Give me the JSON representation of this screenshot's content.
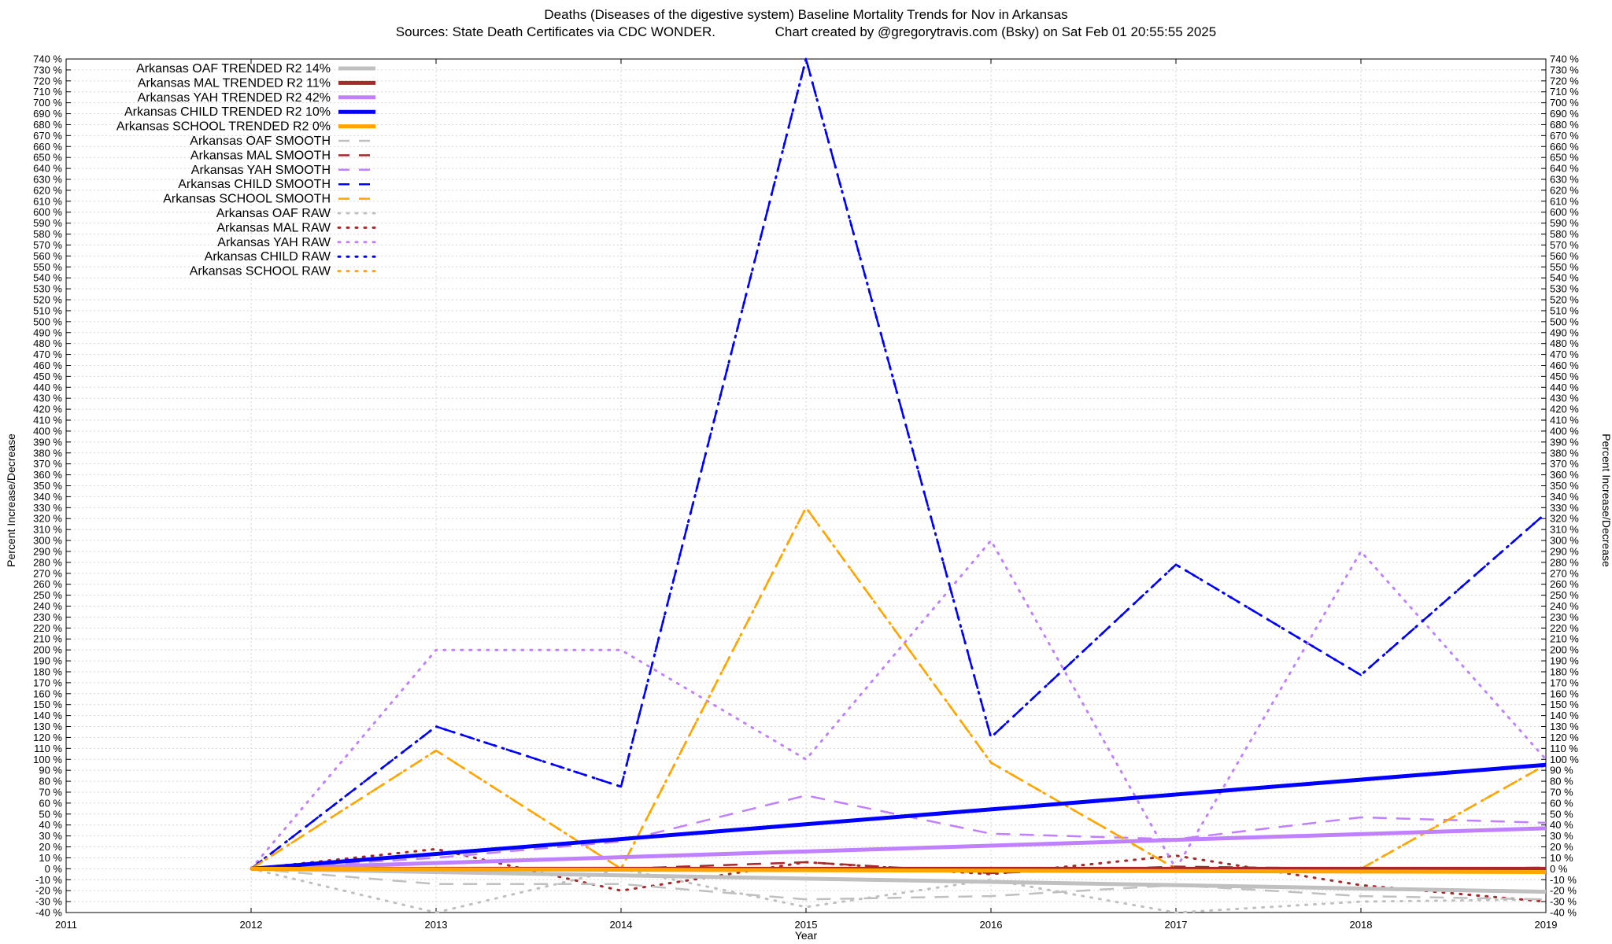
{
  "chart_data": {
    "type": "line",
    "title": "Deaths (Diseases of the digestive system)  Baseline Mortality Trends for Nov in Arkansas",
    "subtitle": "Sources: State Death Certificates via CDC WONDER.                Chart created by @gregorytravis.com (Bsky) on Sat Feb 01 20:55:55 2025",
    "xlabel": "Year",
    "ylabel": "Percent Increase/Decrease",
    "y2label": "Percent Increase/Decrease",
    "xlim": [
      2011,
      2019
    ],
    "ylim": [
      -40,
      740
    ],
    "x_ticks": [
      "2011",
      "2012",
      "2013",
      "2014",
      "2015",
      "2016",
      "2017",
      "2018",
      "2019"
    ],
    "y_tick_step": 10,
    "y_tick_suffix": " %",
    "grid": true,
    "legend_position": "top-left",
    "series": [
      {
        "name": "Arkansas OAF TRENDED R2  14%",
        "style": "trend",
        "color": "#c0c0c0",
        "x": [
          2012,
          2019
        ],
        "y": [
          0,
          -21
        ]
      },
      {
        "name": "Arkansas MAL TRENDED R2  11%",
        "style": "trend",
        "color": "#a52a2a",
        "x": [
          2012,
          2019
        ],
        "y": [
          0,
          0
        ]
      },
      {
        "name": "Arkansas YAH TRENDED R2  42%",
        "style": "trend",
        "color": "#c080ff",
        "x": [
          2012,
          2019
        ],
        "y": [
          0,
          37
        ]
      },
      {
        "name": "Arkansas CHILD TRENDED R2  10%",
        "style": "trend",
        "color": "#0000ff",
        "x": [
          2012,
          2019
        ],
        "y": [
          0,
          95
        ]
      },
      {
        "name": "Arkansas SCHOOL TRENDED R2   0%",
        "style": "trend",
        "color": "#ffa500",
        "x": [
          2012,
          2019
        ],
        "y": [
          0,
          -3
        ]
      },
      {
        "name": "Arkansas OAF SMOOTH",
        "style": "smooth",
        "color": "#c0c0c0",
        "x": [
          2012,
          2013,
          2014,
          2015,
          2016,
          2017,
          2018,
          2019
        ],
        "y": [
          0,
          -14,
          -14,
          -28,
          -25,
          -15,
          -25,
          -28
        ]
      },
      {
        "name": "Arkansas MAL SMOOTH",
        "style": "smooth",
        "color": "#a52a2a",
        "x": [
          2012,
          2013,
          2014,
          2015,
          2016,
          2017,
          2018,
          2019
        ],
        "y": [
          0,
          0,
          0,
          6,
          -4,
          2,
          0,
          1
        ]
      },
      {
        "name": "Arkansas YAH SMOOTH",
        "style": "smooth",
        "color": "#c080ff",
        "x": [
          2012,
          2013,
          2014,
          2015,
          2016,
          2017,
          2018,
          2019
        ],
        "y": [
          0,
          10,
          25,
          67,
          32,
          27,
          47,
          42
        ]
      },
      {
        "name": "Arkansas CHILD SMOOTH",
        "style": "smooth",
        "color": "#0000ff",
        "x": [
          2012,
          2013,
          2014,
          2015,
          2016,
          2017,
          2018,
          2019
        ],
        "y": [
          0,
          130,
          75,
          740,
          120,
          278,
          177,
          325
        ]
      },
      {
        "name": "Arkansas SCHOOL SMOOTH",
        "style": "smooth",
        "color": "#ffa500",
        "x": [
          2012,
          2013,
          2014,
          2015,
          2016,
          2017,
          2018,
          2019
        ],
        "y": [
          0,
          108,
          0,
          330,
          97,
          0,
          0,
          95
        ]
      },
      {
        "name": "Arkansas OAF RAW",
        "style": "raw",
        "color": "#c0c0c0",
        "x": [
          2012,
          2013,
          2014,
          2015,
          2016,
          2017,
          2018,
          2019
        ],
        "y": [
          0,
          -40,
          0,
          -35,
          -10,
          -40,
          -30,
          -28
        ]
      },
      {
        "name": "Arkansas MAL RAW",
        "style": "raw",
        "color": "#a52a2a",
        "x": [
          2012,
          2013,
          2014,
          2015,
          2016,
          2017,
          2018,
          2019
        ],
        "y": [
          0,
          18,
          -20,
          6,
          -5,
          12,
          -15,
          -30
        ]
      },
      {
        "name": "Arkansas YAH RAW",
        "style": "raw",
        "color": "#c080ff",
        "x": [
          2012,
          2013,
          2014,
          2015,
          2016,
          2017,
          2018,
          2019
        ],
        "y": [
          0,
          200,
          200,
          100,
          300,
          0,
          290,
          100
        ]
      },
      {
        "name": "Arkansas CHILD RAW",
        "style": "raw",
        "color": "#0000ff",
        "x": [
          2012,
          2013,
          2014,
          2015,
          2016,
          2017,
          2018,
          2019
        ],
        "y": [
          0,
          130,
          75,
          740,
          120,
          278,
          177,
          325
        ]
      },
      {
        "name": "Arkansas SCHOOL RAW",
        "style": "raw",
        "color": "#ffa500",
        "x": [
          2012,
          2013,
          2014,
          2015,
          2016,
          2017,
          2018,
          2019
        ],
        "y": [
          0,
          108,
          0,
          330,
          97,
          0,
          0,
          95
        ]
      }
    ]
  }
}
